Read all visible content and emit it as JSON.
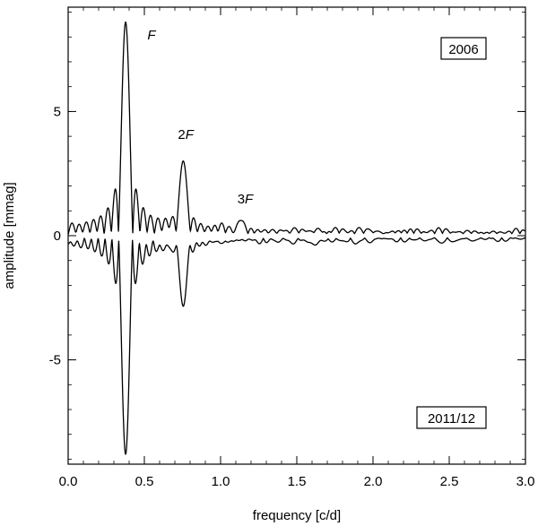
{
  "chart_data": {
    "type": "line",
    "xlabel": "frequency [c/d]",
    "ylabel": "amplitude [mmag]",
    "xlim": [
      0.0,
      3.0
    ],
    "ylim": [
      -9.2,
      9.2
    ],
    "x_ticks": [
      "0.0",
      "0.5",
      "1.0",
      "1.5",
      "2.0",
      "2.5",
      "3.0"
    ],
    "y_ticks": [
      "-5",
      "0",
      "5"
    ],
    "grid": false,
    "series": [
      {
        "name": "2006",
        "direction": "up",
        "peaks": [
          {
            "f": 0.377,
            "amp": 8.6
          },
          {
            "f": 0.755,
            "amp": 3.0
          },
          {
            "f": 1.133,
            "amp": 0.6
          }
        ],
        "sidelobe_spacing": 0.047,
        "noise_level": 0.15
      },
      {
        "name": "2011/12",
        "direction": "down",
        "peaks": [
          {
            "f": 0.377,
            "amp": 8.8
          },
          {
            "f": 0.755,
            "amp": 2.8
          },
          {
            "f": 1.62,
            "amp": 0.35
          }
        ],
        "sidelobe_spacing": 0.045,
        "noise_level": 0.15
      }
    ],
    "annotations": [
      {
        "main": "",
        "italic": "F",
        "f": 0.52,
        "amp": 7.9
      },
      {
        "main": "2",
        "italic": "F",
        "f": 0.72,
        "amp": 3.9
      },
      {
        "main": "3",
        "italic": "F",
        "f": 1.11,
        "amp": 1.3
      }
    ],
    "legend_boxes": [
      {
        "text": "2006",
        "placement": "top-right"
      },
      {
        "text": "2011/12",
        "placement": "bottom-right"
      }
    ]
  }
}
